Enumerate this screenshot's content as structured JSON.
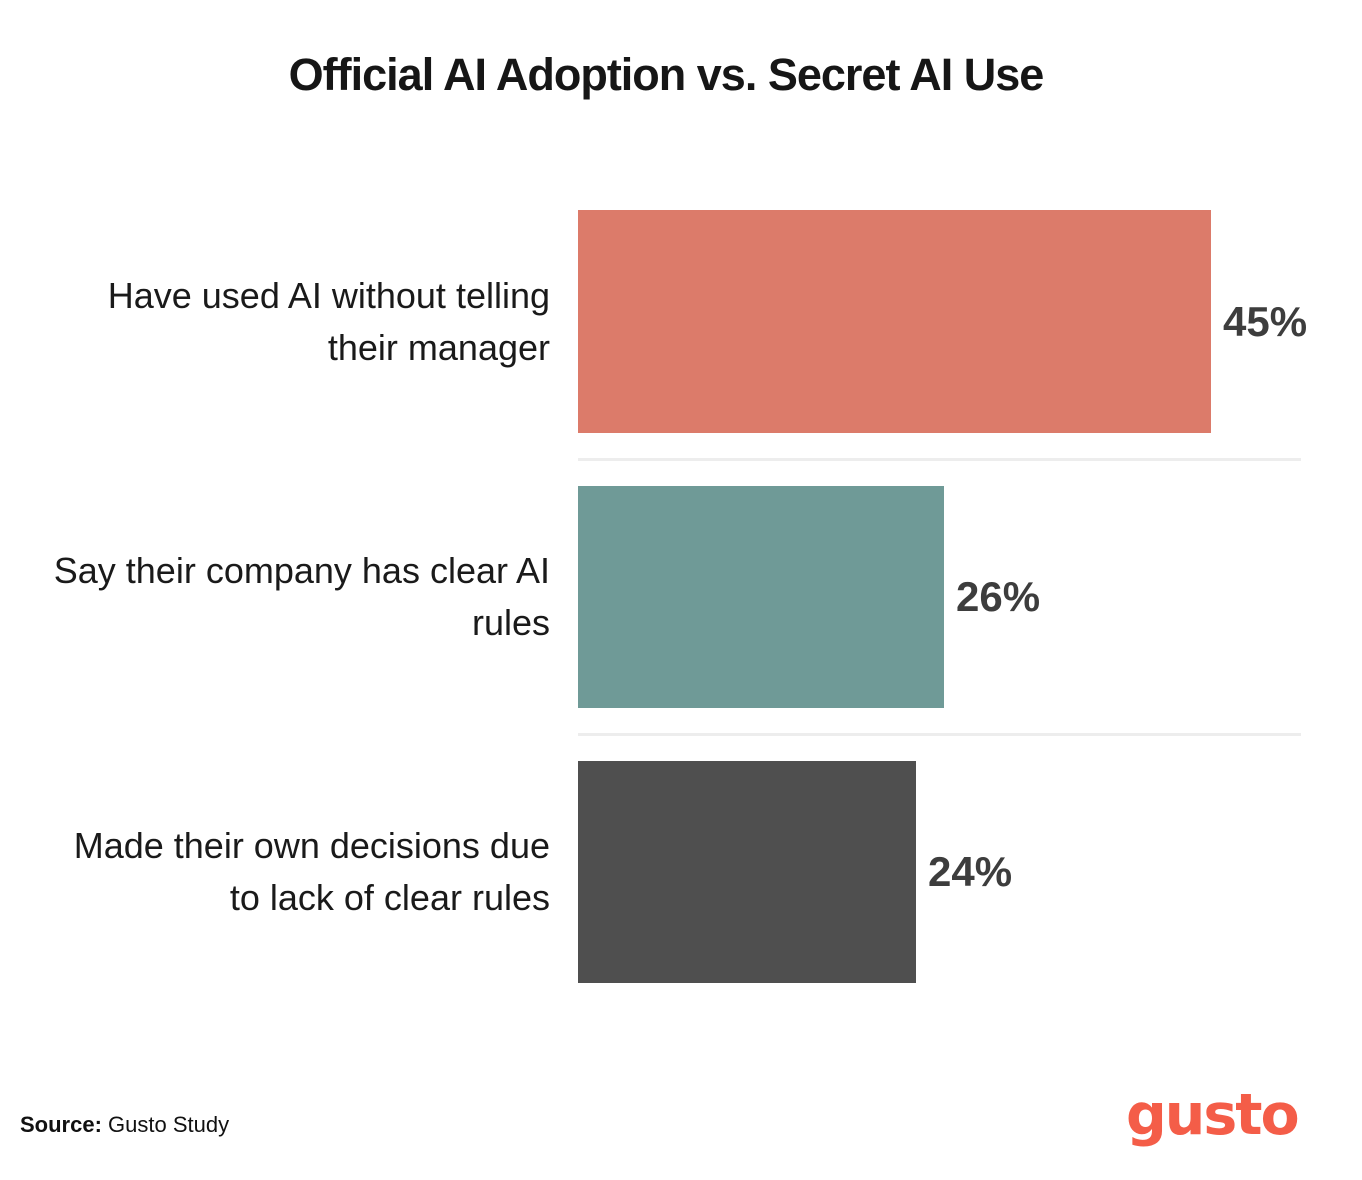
{
  "title": "Official AI Adoption vs. Secret AI Use",
  "chart_data": {
    "type": "bar",
    "orientation": "horizontal",
    "title": "Official AI Adoption vs. Secret AI Use",
    "categories": [
      "Have used AI without telling their manager",
      "Say their company has clear AI rules",
      "Made their own decisions due to lack of clear rules"
    ],
    "values": [
      45,
      26,
      24
    ],
    "value_labels": [
      "45%",
      "26%",
      "24%"
    ],
    "bar_colors": [
      "#DC7B6A",
      "#6F9A97",
      "#4F4F4F"
    ],
    "unit": "%",
    "xlim": [
      0,
      50
    ],
    "grid": false,
    "legend": false
  },
  "rows": [
    {
      "lines": [
        "Have used AI without telling",
        "their manager"
      ],
      "value_label": "45%"
    },
    {
      "lines": [
        "Say their company has clear AI",
        "rules"
      ],
      "value_label": "26%"
    },
    {
      "lines": [
        "Made their own decisions due",
        "to lack of clear rules"
      ],
      "value_label": "24%"
    }
  ],
  "footer": {
    "source_label": "Source:",
    "source_text": "Gusto Study",
    "logo_text": "gusto",
    "logo_color": "#F45D48"
  }
}
